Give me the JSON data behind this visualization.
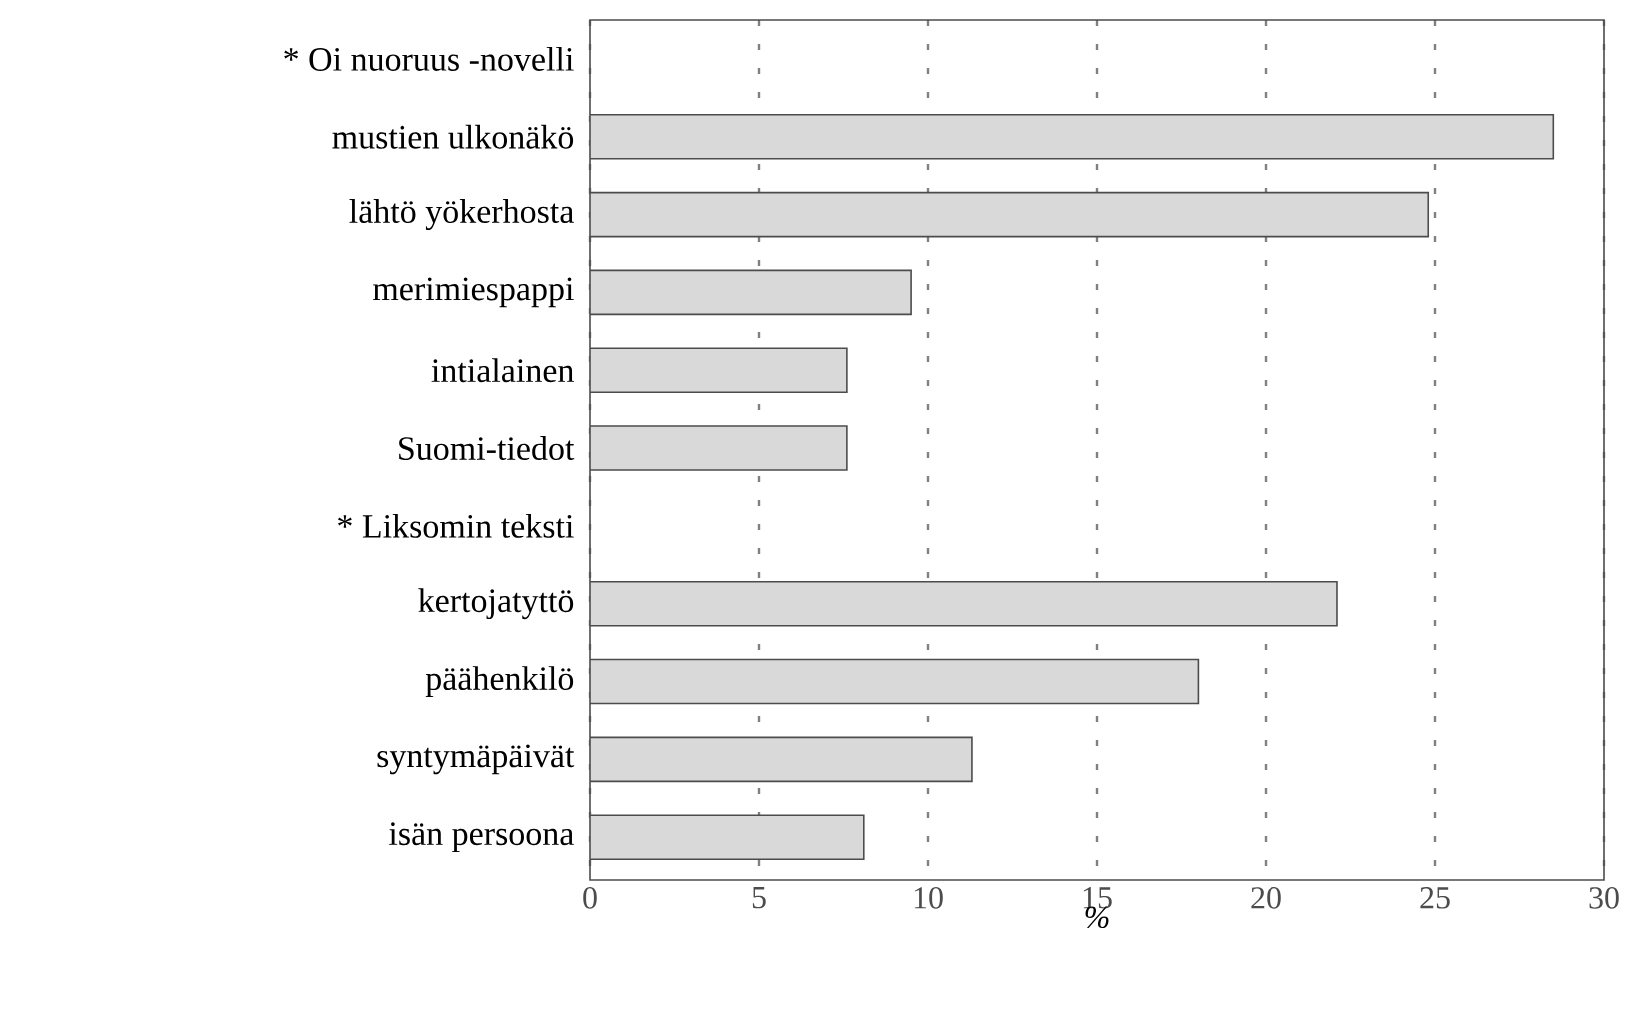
{
  "chart_data": {
    "type": "bar",
    "orientation": "horizontal",
    "xlabel": "%",
    "categories": [
      "* Oi nuoruus -novelli",
      "mustien ulkonäkö",
      "lähtö yökerhosta",
      "merimiespappi",
      "intialainen",
      "Suomi-tiedot",
      "* Liksomin teksti",
      "kertojatyttö",
      "päähenkilö",
      "syntymäpäivät",
      "isän persoona"
    ],
    "values": [
      null,
      28.5,
      24.8,
      9.5,
      7.6,
      7.6,
      null,
      22.1,
      18.0,
      11.3,
      8.1
    ],
    "color": "#d9d9d9",
    "xlim": [
      0,
      30
    ],
    "xticks": [
      0,
      5,
      10,
      15,
      20,
      25,
      30
    ],
    "grid": "x"
  }
}
